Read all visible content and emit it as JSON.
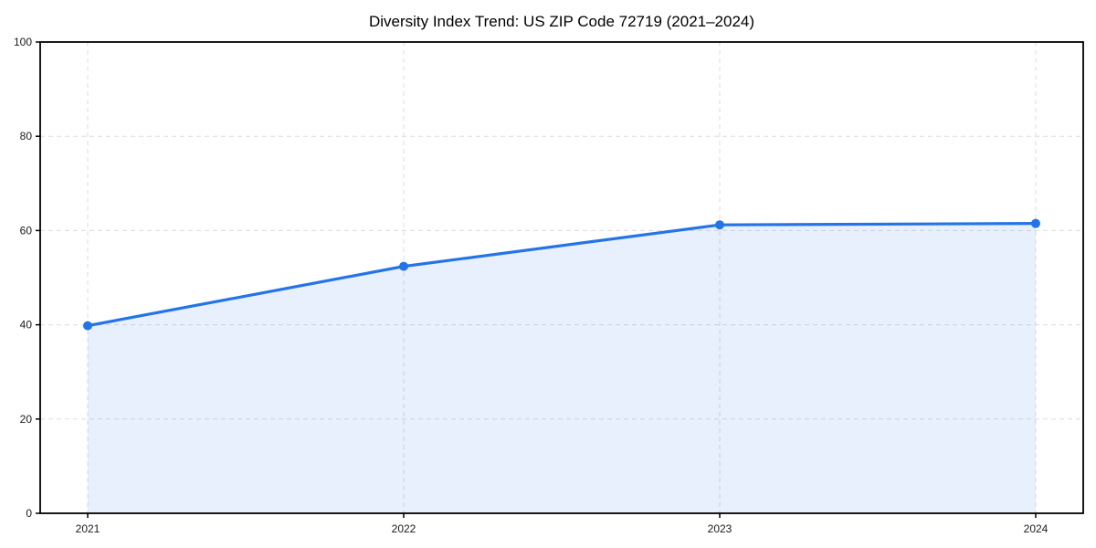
{
  "chart_data": {
    "type": "area",
    "title": "Diversity Index Trend: US ZIP Code 72719 (2021–2024)",
    "categories": [
      "2021",
      "2022",
      "2023",
      "2024"
    ],
    "x": [
      2021,
      2022,
      2023,
      2024
    ],
    "series": [
      {
        "name": "Diversity Index",
        "values": [
          39.8,
          52.4,
          61.2,
          61.5
        ]
      }
    ],
    "values": [
      39.8,
      52.4,
      61.2,
      61.5
    ],
    "xlabel": "",
    "ylabel": "",
    "ylim": [
      0,
      100
    ],
    "yticks": [
      0,
      20,
      40,
      60,
      80,
      100
    ],
    "xticks": [
      "2021",
      "2022",
      "2023",
      "2024"
    ],
    "grid": true,
    "grid_style": "dashed",
    "legend": "none",
    "marker": "circle",
    "line_color": "#2474e8",
    "fill_color": "rgba(36,116,232,0.11)",
    "grid_color": "#dcdcdc",
    "axis_color": "#000000",
    "text_color": "#1a1a1a"
  }
}
